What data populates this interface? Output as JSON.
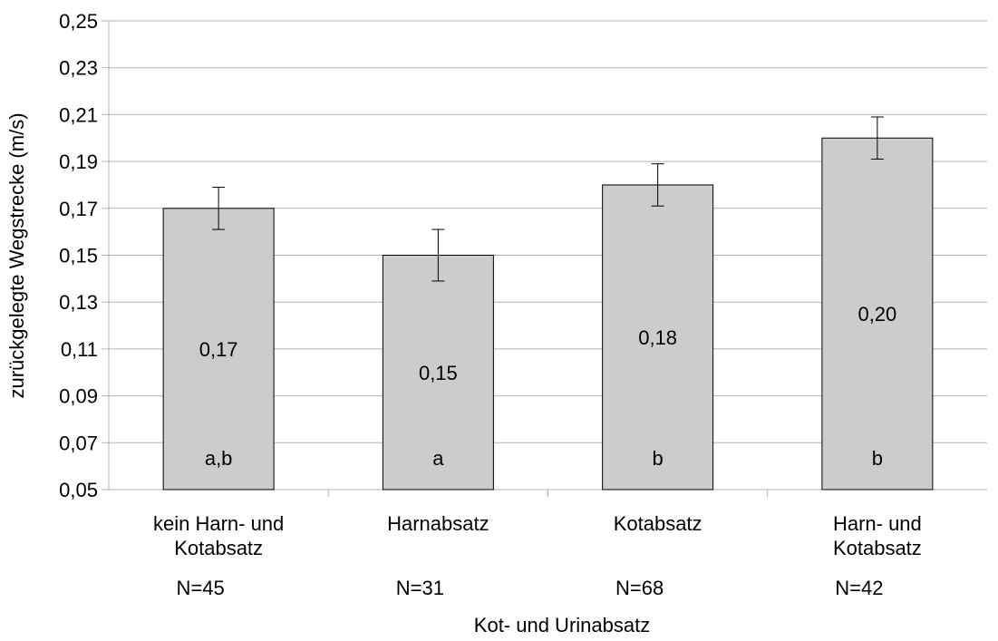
{
  "chart_data": {
    "type": "bar",
    "title": "",
    "xlabel": "Kot- und Urinabsatz",
    "ylabel": "zurückgelegte Wegstrecke (m/s)",
    "ylim": [
      0.05,
      0.25
    ],
    "yticks": [
      "0,05",
      "0,07",
      "0,09",
      "0,11",
      "0,13",
      "0,15",
      "0,17",
      "0,19",
      "0,21",
      "0,23",
      "0,25"
    ],
    "grid": true,
    "categories": [
      [
        "kein Harn- und",
        "Kotabsatz"
      ],
      [
        "Harnabsatz"
      ],
      [
        "Kotabsatz"
      ],
      [
        "Harn- und",
        "Kotabsatz"
      ]
    ],
    "sample_sizes": [
      "N=45",
      "N=31",
      "N=68",
      "N=42"
    ],
    "values": [
      0.17,
      0.15,
      0.18,
      0.2
    ],
    "value_labels": [
      "0,17",
      "0,15",
      "0,18",
      "0,20"
    ],
    "error_low": [
      0.161,
      0.139,
      0.171,
      0.191
    ],
    "error_high": [
      0.179,
      0.161,
      0.189,
      0.209
    ],
    "significance_letters": [
      "a,b",
      "a",
      "b",
      "b"
    ],
    "colors": {
      "bar": "#cccccc",
      "bar_stroke": "#000000",
      "grid": "#b3b3b3",
      "axis": "#b3b3b3"
    }
  }
}
